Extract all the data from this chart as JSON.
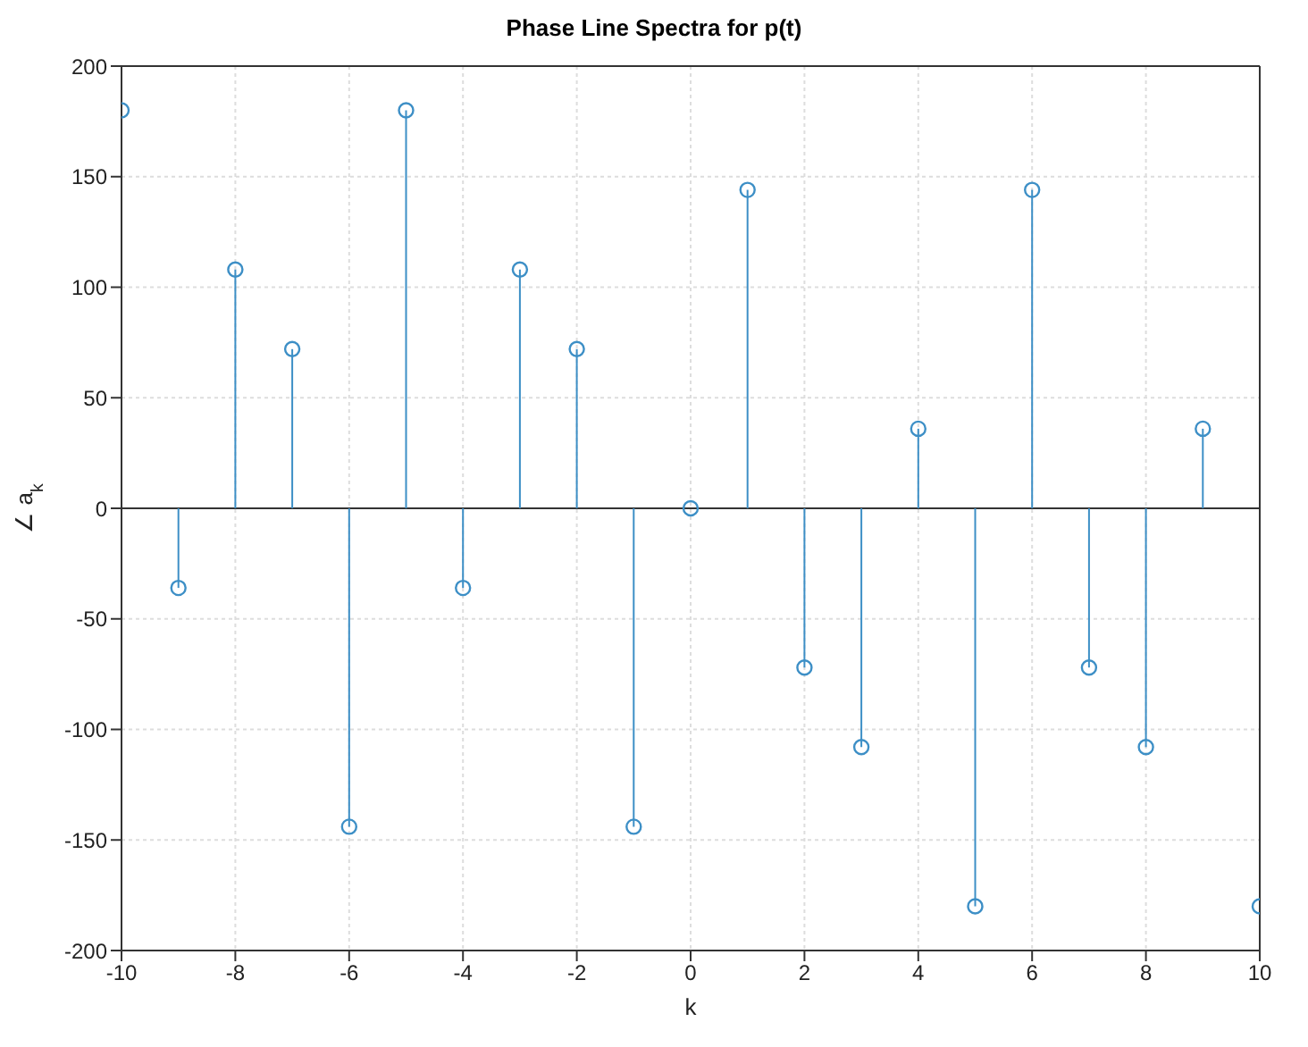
{
  "chart_data": {
    "type": "lollipop",
    "title": "Phase Line Spectra for p(t)",
    "xlabel": "k",
    "ylabel": "∠ a$_{k}$",
    "x": [
      -10,
      -9,
      -8,
      -7,
      -6,
      -5,
      -4,
      -3,
      -2,
      -1,
      0,
      1,
      2,
      3,
      4,
      5,
      6,
      7,
      8,
      9,
      10
    ],
    "series": [
      {
        "color": "#3d8fc6",
        "values": [
          180,
          -36,
          108,
          72,
          -144,
          180,
          -36,
          108,
          72,
          -144,
          0,
          144,
          -72,
          -108,
          36,
          -180,
          144,
          -72,
          -108,
          36,
          -180
        ]
      }
    ],
    "xlim": [
      -10,
      10
    ],
    "xticks": [
      -10,
      -8,
      -6,
      -4,
      -2,
      0,
      2,
      4,
      6,
      8,
      10
    ],
    "ylim": [
      -200,
      200
    ],
    "yticks": [
      -200,
      -150,
      -100,
      -50,
      0,
      50,
      100,
      150,
      200
    ],
    "grid": true,
    "marker": "circle"
  }
}
